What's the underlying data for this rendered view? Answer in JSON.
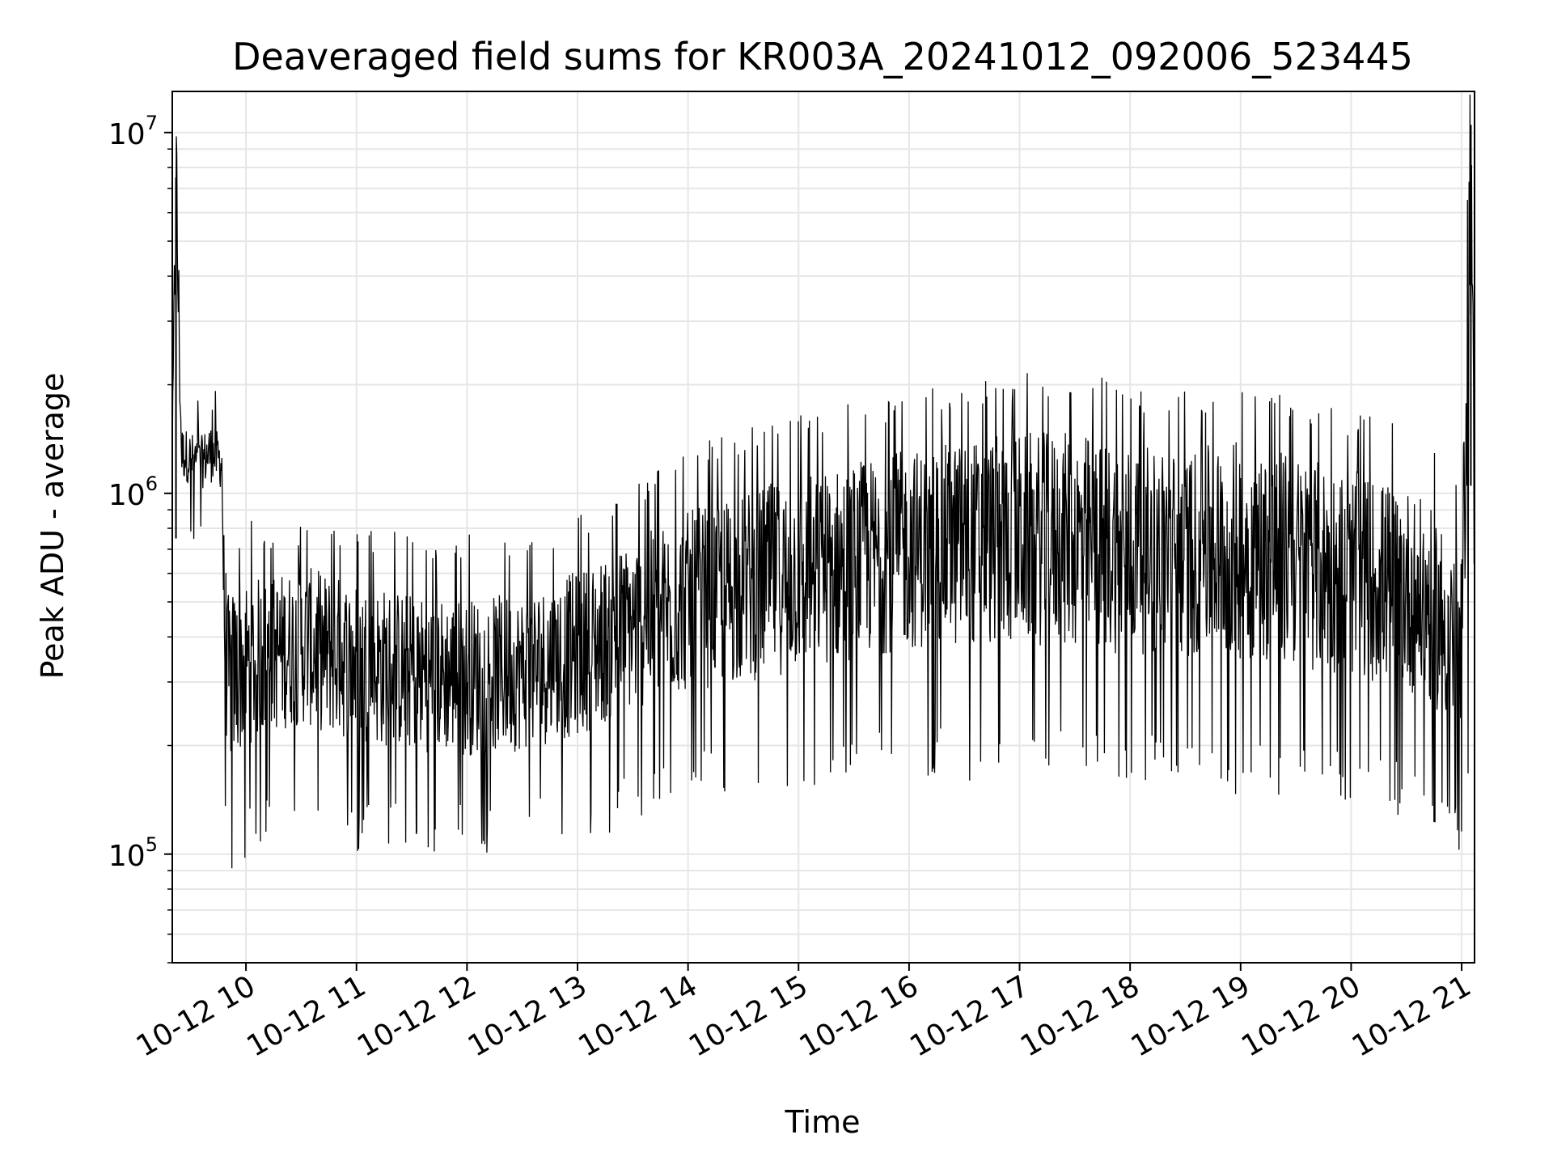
{
  "chart_data": {
    "type": "line",
    "title": "Deaveraged field sums for KR003A_20241012_092006_523445",
    "xlabel": "Time",
    "ylabel": "Peak ADU - average",
    "yscale": "log",
    "ylim": [
      50000,
      13000000
    ],
    "xlim": [
      "2024-10-12 09:20",
      "2024-10-12 21:07"
    ],
    "grid": true,
    "legend": "none",
    "line_color": "#000000",
    "x_tick_labels": [
      "10-12 10",
      "10-12 11",
      "10-12 12",
      "10-12 13",
      "10-12 14",
      "10-12 15",
      "10-12 16",
      "10-12 17",
      "10-12 18",
      "10-12 19",
      "10-12 20",
      "10-12 21"
    ],
    "x_ticks": [
      "2024-10-12 10:00",
      "2024-10-12 11:00",
      "2024-10-12 12:00",
      "2024-10-12 13:00",
      "2024-10-12 14:00",
      "2024-10-12 15:00",
      "2024-10-12 16:00",
      "2024-10-12 17:00",
      "2024-10-12 18:00",
      "2024-10-12 19:00",
      "2024-10-12 20:00",
      "2024-10-12 21:00"
    ],
    "y_ticks": [
      {
        "value": 100000,
        "base": "10",
        "exp": "5"
      },
      {
        "value": 1000000,
        "base": "10",
        "exp": "6"
      },
      {
        "value": 10000000,
        "base": "10",
        "exp": "7"
      }
    ],
    "series": [
      {
        "x": [
          "2024-10-12 09:20",
          "2024-10-12 09:22",
          "2024-10-12 09:25",
          "2024-10-12 09:30",
          "2024-10-12 09:35",
          "2024-10-12 09:40",
          "2024-10-12 09:45",
          "2024-10-12 09:47",
          "2024-10-12 09:48",
          "2024-10-12 09:50",
          "2024-10-12 09:55",
          "2024-10-12 10:00",
          "2024-10-12 10:15",
          "2024-10-12 10:30",
          "2024-10-12 11:00",
          "2024-10-12 11:30",
          "2024-10-12 12:00",
          "2024-10-12 12:30",
          "2024-10-12 13:00",
          "2024-10-12 13:30",
          "2024-10-12 14:00",
          "2024-10-12 14:30",
          "2024-10-12 15:00",
          "2024-10-12 15:30",
          "2024-10-12 16:00",
          "2024-10-12 16:30",
          "2024-10-12 17:00",
          "2024-10-12 17:30",
          "2024-10-12 18:00",
          "2024-10-12 18:30",
          "2024-10-12 19:00",
          "2024-10-12 19:30",
          "2024-10-12 20:00",
          "2024-10-12 20:30",
          "2024-10-12 20:50",
          "2024-10-12 21:00",
          "2024-10-12 21:05",
          "2024-10-12 21:07"
        ],
        "values": [
          1200000,
          7500000,
          1300000,
          1250000,
          1200000,
          1300000,
          1250000,
          1200000,
          500000,
          300000,
          320000,
          340000,
          360000,
          380000,
          340000,
          320000,
          310000,
          320000,
          360000,
          430000,
          500000,
          550000,
          600000,
          650000,
          700000,
          720000,
          750000,
          740000,
          700000,
          680000,
          700000,
          650000,
          600000,
          550000,
          450000,
          350000,
          10500000,
          550000
        ],
        "spread_low": [
          1000000,
          1000000,
          950000,
          950000,
          900000,
          950000,
          950000,
          900000,
          200000,
          110000,
          120000,
          140000,
          150000,
          150000,
          140000,
          140000,
          140000,
          140000,
          150000,
          170000,
          190000,
          200000,
          210000,
          220000,
          230000,
          220000,
          230000,
          220000,
          220000,
          210000,
          200000,
          200000,
          190000,
          180000,
          170000,
          130000,
          300000,
          270000
        ],
        "spread_high": [
          1500000,
          7500000,
          1600000,
          1600000,
          1500000,
          1700000,
          1600000,
          1500000,
          900000,
          600000,
          650000,
          700000,
          700000,
          700000,
          700000,
          650000,
          650000,
          650000,
          750000,
          900000,
          1100000,
          1300000,
          1400000,
          1500000,
          1600000,
          1700000,
          1800000,
          1800000,
          1700000,
          1600000,
          1700000,
          1600000,
          1400000,
          1300000,
          1100000,
          800000,
          10500000,
          900000
        ]
      }
    ]
  }
}
